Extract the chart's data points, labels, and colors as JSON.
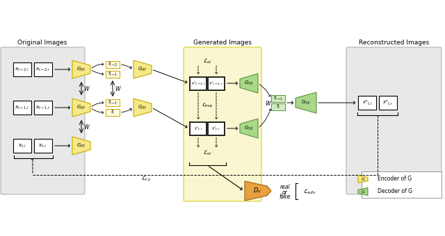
{
  "title_left": "Original Images",
  "title_mid": "Generated Images",
  "title_right": "Reconstructed Images",
  "yellow_fill": "#f5e988",
  "yellow_edge": "#c8a800",
  "yellow_bg": "#faf7d0",
  "yellow_bg_edge": "#d4c800",
  "green_fill": "#a8d888",
  "green_edge": "#5a9040",
  "green_feat_fill": "#d0ecc0",
  "green_feat_edge": "#5a9040",
  "orange_fill": "#e8a040",
  "orange_edge": "#a06010",
  "gray_bg": "#e8e8e8",
  "gray_edge": "#aaaaaa",
  "white": "#ffffff",
  "black": "#000000"
}
